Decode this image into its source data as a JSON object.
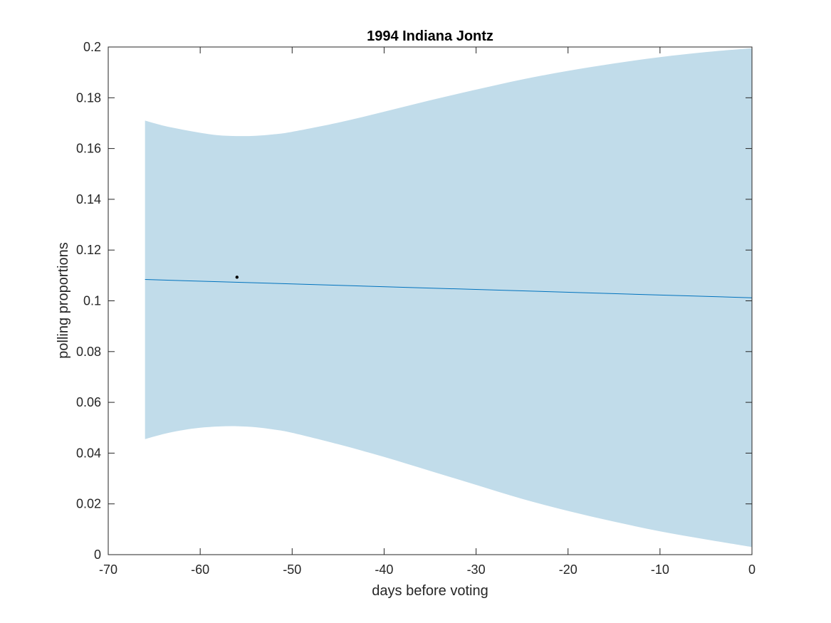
{
  "chart_data": {
    "type": "area",
    "title": "1994 Indiana Jontz",
    "xlabel": "days before voting",
    "ylabel": "polling proportions",
    "xlim": [
      -70,
      0
    ],
    "ylim": [
      0,
      0.2
    ],
    "x_ticks": [
      -70,
      -60,
      -50,
      -40,
      -30,
      -20,
      -10,
      0
    ],
    "x_tick_labels": [
      "-70",
      "-60",
      "-50",
      "-40",
      "-30",
      "-20",
      "-10",
      "0"
    ],
    "y_ticks": [
      0,
      0.02,
      0.04,
      0.06,
      0.08,
      0.1,
      0.12,
      0.14,
      0.16,
      0.18,
      0.2
    ],
    "y_tick_labels": [
      "0",
      "0.02",
      "0.04",
      "0.06",
      "0.08",
      "0.1",
      "0.12",
      "0.14",
      "0.16",
      "0.18",
      "0.2"
    ],
    "grid": false,
    "band": {
      "color": "#c1dcea",
      "x": [
        -66,
        -64,
        -62,
        -60,
        -58,
        -56,
        -54,
        -52,
        -50,
        -45,
        -40,
        -35,
        -30,
        -25,
        -20,
        -15,
        -10,
        -5,
        0
      ],
      "upper": [
        0.171,
        0.169,
        0.1675,
        0.1662,
        0.1652,
        0.1649,
        0.165,
        0.1656,
        0.1666,
        0.1702,
        0.1745,
        0.179,
        0.1832,
        0.1872,
        0.1906,
        0.1935,
        0.196,
        0.198,
        0.1995
      ],
      "lower": [
        0.0455,
        0.0475,
        0.049,
        0.05,
        0.0505,
        0.0506,
        0.0502,
        0.0493,
        0.048,
        0.0435,
        0.0385,
        0.033,
        0.0275,
        0.022,
        0.0172,
        0.013,
        0.0092,
        0.006,
        0.003
      ]
    },
    "series": [
      {
        "type": "line",
        "color": "#0072bd",
        "x": [
          -66,
          0
        ],
        "values": [
          0.1084,
          0.1012
        ]
      },
      {
        "type": "scatter",
        "color": "#000000",
        "x": [
          -56
        ],
        "values": [
          0.1093
        ]
      }
    ]
  }
}
